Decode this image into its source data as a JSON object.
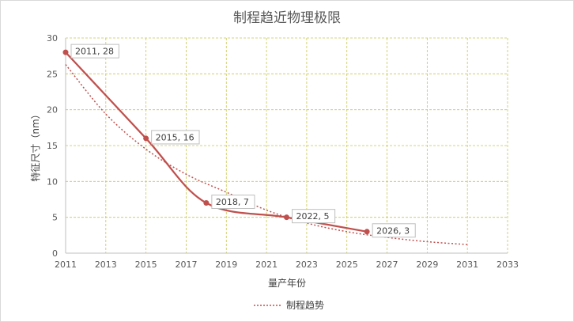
{
  "chart_data": {
    "type": "line",
    "title": "制程趋近物理极限",
    "xlabel": "量产年份",
    "ylabel": "特征尺寸（nm）",
    "xlim": [
      2011,
      2033
    ],
    "ylim": [
      0,
      30
    ],
    "x_ticks": [
      2011,
      2013,
      2015,
      2017,
      2019,
      2021,
      2023,
      2025,
      2027,
      2029,
      2031,
      2033
    ],
    "y_ticks": [
      0,
      5,
      10,
      15,
      20,
      25,
      30
    ],
    "grid": true,
    "series": [
      {
        "style": "smooth-line-with-markers",
        "color": "#c0504d",
        "points": [
          {
            "x": 2011,
            "y": 28,
            "label": "2011, 28"
          },
          {
            "x": 2015,
            "y": 16,
            "label": "2015, 16"
          },
          {
            "x": 2018,
            "y": 7,
            "label": "2018, 7"
          },
          {
            "x": 2022,
            "y": 5,
            "label": "2022, 5"
          },
          {
            "x": 2026,
            "y": 3,
            "label": "2026, 3"
          }
        ]
      },
      {
        "name": "制程趋势",
        "style": "dotted-trendline",
        "color": "#c0504d",
        "points": [
          {
            "x": 2011,
            "y": 26.3
          },
          {
            "x": 2013,
            "y": 19.4
          },
          {
            "x": 2015,
            "y": 14.5
          },
          {
            "x": 2017,
            "y": 11.0
          },
          {
            "x": 2019,
            "y": 8.5
          },
          {
            "x": 2021,
            "y": 6.0
          },
          {
            "x": 2023,
            "y": 4.2
          },
          {
            "x": 2025,
            "y": 3.0
          },
          {
            "x": 2027,
            "y": 2.2
          },
          {
            "x": 2029,
            "y": 1.6
          },
          {
            "x": 2031,
            "y": 1.2
          }
        ]
      }
    ],
    "legend": {
      "position": "bottom",
      "entries": [
        "制程趋势"
      ]
    }
  }
}
